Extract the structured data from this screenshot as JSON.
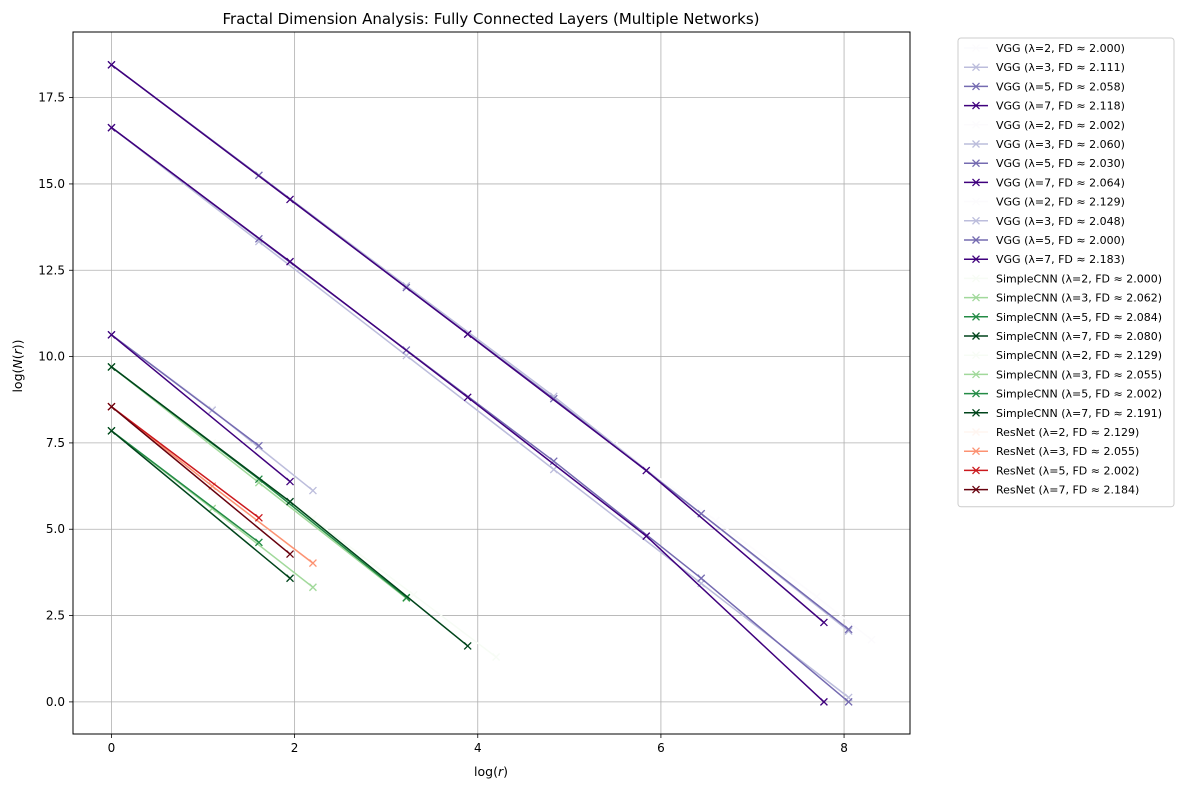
{
  "chart_data": {
    "type": "line",
    "title": "Fractal Dimension Analysis: Fully Connected Layers (Multiple Networks)",
    "xlabel": "log(r)",
    "ylabel": "log(N(r))",
    "xlim": [
      -0.42,
      8.72
    ],
    "ylim": [
      -0.93,
      19.4
    ],
    "xticks": [
      0,
      2,
      4,
      6,
      8
    ],
    "yticks": [
      0.0,
      2.5,
      5.0,
      7.5,
      10.0,
      12.5,
      15.0,
      17.5
    ],
    "ytick_labels": [
      "0.0",
      "2.5",
      "5.0",
      "7.5",
      "10.0",
      "12.5",
      "15.0",
      "17.5"
    ],
    "grid": true,
    "legend_position": "outside right, top",
    "marker": "x",
    "series": [
      {
        "name": "VGG (λ=2, FD ≈ 2.000)",
        "color": "#fcfbfd",
        "x": [
          0,
          1.1,
          2.2,
          3.3,
          4.4,
          5.5,
          6.6,
          7.7
        ],
        "y": [
          18.45,
          16.25,
          14.05,
          11.85,
          9.65,
          7.45,
          5.25,
          3.05
        ]
      },
      {
        "name": "VGG (λ=3, FD ≈ 2.111)",
        "color": "#bcbddc",
        "x": [
          0,
          1.61,
          3.22,
          4.83,
          6.44,
          8.05
        ],
        "y": [
          16.63,
          13.33,
          10.03,
          6.73,
          3.43,
          0.13
        ]
      },
      {
        "name": "VGG (λ=5, FD ≈ 2.058)",
        "color": "#756bb1",
        "x": [
          0,
          1.61,
          3.22,
          4.83,
          6.44,
          8.05
        ],
        "y": [
          16.63,
          13.41,
          10.19,
          6.97,
          3.58,
          0.0
        ]
      },
      {
        "name": "VGG (λ=7, FD ≈ 2.118)",
        "color": "#3f007d",
        "x": [
          0,
          1.95,
          3.89,
          5.84,
          7.78
        ],
        "y": [
          16.63,
          12.75,
          8.82,
          4.8,
          0.0
        ]
      },
      {
        "name": "VGG (λ=2, FD ≈ 2.002)",
        "color": "#fcfbfd",
        "x": [
          0,
          1.1,
          2.2,
          3.3,
          4.4,
          5.5,
          6.6,
          7.7,
          8.3
        ],
        "y": [
          18.45,
          16.25,
          14.05,
          11.85,
          9.65,
          7.45,
          5.25,
          3.05,
          1.8
        ]
      },
      {
        "name": "VGG (λ=3, FD ≈ 2.060)",
        "color": "#bcbddc",
        "x": [
          0,
          1.61,
          3.22,
          4.83,
          6.44,
          8.05
        ],
        "y": [
          18.45,
          15.25,
          12.05,
          8.85,
          5.45,
          2.05
        ]
      },
      {
        "name": "VGG (λ=5, FD ≈ 2.030)",
        "color": "#756bb1",
        "x": [
          0,
          1.61,
          3.22,
          4.83,
          6.44,
          8.05
        ],
        "y": [
          18.45,
          15.25,
          12.0,
          8.78,
          5.45,
          2.1
        ]
      },
      {
        "name": "VGG (λ=7, FD ≈ 2.064)",
        "color": "#3f007d",
        "x": [
          0,
          1.95,
          3.89,
          5.84,
          7.78
        ],
        "y": [
          18.45,
          14.55,
          10.65,
          6.7,
          2.3
        ]
      },
      {
        "name": "VGG (λ=2, FD ≈ 2.129)",
        "color": "#fcfbfd",
        "x": [
          0,
          1.1,
          2.2
        ],
        "y": [
          10.63,
          8.5,
          6.12
        ]
      },
      {
        "name": "VGG (λ=3, FD ≈ 2.048)",
        "color": "#bcbddc",
        "x": [
          0,
          1.1,
          2.2
        ],
        "y": [
          10.63,
          8.45,
          6.12
        ]
      },
      {
        "name": "VGG (λ=5, FD ≈ 2.000)",
        "color": "#756bb1",
        "x": [
          0,
          1.61
        ],
        "y": [
          10.63,
          7.42
        ]
      },
      {
        "name": "VGG (λ=7, FD ≈ 2.183)",
        "color": "#3f007d",
        "x": [
          0,
          1.95
        ],
        "y": [
          10.63,
          6.38
        ]
      },
      {
        "name": "SimpleCNN (λ=2, FD ≈ 2.000)",
        "color": "#f7fcf5",
        "x": [
          0,
          1.1,
          2.2,
          3.3,
          4.2
        ],
        "y": [
          9.7,
          7.5,
          5.3,
          3.1,
          1.3
        ]
      },
      {
        "name": "SimpleCNN (λ=3, FD ≈ 2.062)",
        "color": "#a1d99b",
        "x": [
          0,
          1.61,
          3.22
        ],
        "y": [
          9.7,
          6.35,
          3.0
        ]
      },
      {
        "name": "SimpleCNN (λ=5, FD ≈ 2.084)",
        "color": "#238b45",
        "x": [
          0,
          1.61,
          3.22
        ],
        "y": [
          9.7,
          6.45,
          3.02
        ]
      },
      {
        "name": "SimpleCNN (λ=7, FD ≈ 2.080)",
        "color": "#00441b",
        "x": [
          0,
          1.95,
          3.89
        ],
        "y": [
          9.7,
          5.8,
          1.62
        ]
      },
      {
        "name": "SimpleCNN (λ=2, FD ≈ 2.129)",
        "color": "#f7fcf5",
        "x": [
          0,
          1.1,
          2.2
        ],
        "y": [
          7.85,
          5.6,
          3.3
        ]
      },
      {
        "name": "SimpleCNN (λ=3, FD ≈ 2.055)",
        "color": "#a1d99b",
        "x": [
          0,
          1.1,
          2.2
        ],
        "y": [
          7.85,
          5.6,
          3.32
        ]
      },
      {
        "name": "SimpleCNN (λ=5, FD ≈ 2.002)",
        "color": "#238b45",
        "x": [
          0,
          1.61
        ],
        "y": [
          7.85,
          4.62
        ]
      },
      {
        "name": "SimpleCNN (λ=7, FD ≈ 2.191)",
        "color": "#00441b",
        "x": [
          0,
          1.95
        ],
        "y": [
          7.85,
          3.58
        ]
      },
      {
        "name": "ResNet (λ=2, FD ≈ 2.129)",
        "color": "#fff5f0",
        "x": [
          0,
          1.1,
          2.2
        ],
        "y": [
          8.55,
          6.25,
          4.0
        ]
      },
      {
        "name": "ResNet (λ=3, FD ≈ 2.055)",
        "color": "#fc9272",
        "x": [
          0,
          1.1,
          2.2
        ],
        "y": [
          8.55,
          6.25,
          4.02
        ]
      },
      {
        "name": "ResNet (λ=5, FD ≈ 2.002)",
        "color": "#cb181d",
        "x": [
          0,
          1.61
        ],
        "y": [
          8.55,
          5.33
        ]
      },
      {
        "name": "ResNet (λ=7, FD ≈ 2.184)",
        "color": "#67000d",
        "x": [
          0,
          1.95
        ],
        "y": [
          8.55,
          4.28
        ]
      }
    ]
  }
}
